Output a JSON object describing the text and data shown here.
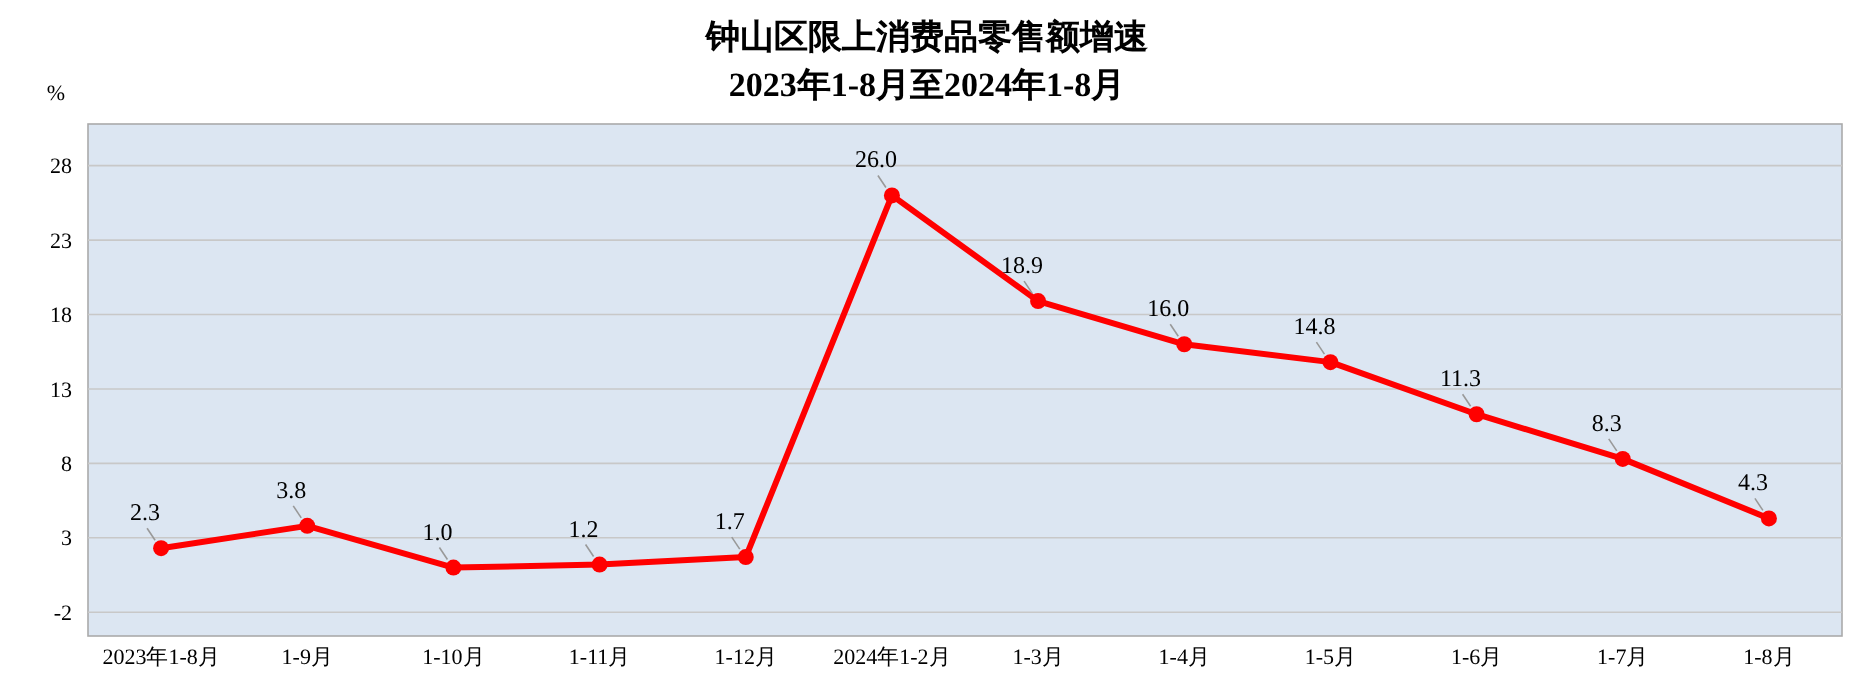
{
  "chart_data": {
    "type": "line",
    "title": "钟山区限上消费品零售额增速",
    "subtitle": "2023年1-8月至2024年1-8月",
    "ylabel": "%",
    "categories": [
      "2023年1-8月",
      "1-9月",
      "1-10月",
      "1-11月",
      "1-12月",
      "2024年1-2月",
      "1-3月",
      "1-4月",
      "1-5月",
      "1-6月",
      "1-7月",
      "1-8月"
    ],
    "series": [
      {
        "color": "#ff0000",
        "values": [
          2.3,
          3.8,
          1.0,
          1.2,
          1.7,
          26.0,
          18.9,
          16.0,
          14.8,
          11.3,
          8.3,
          4.3
        ],
        "value_labels": [
          "2.3",
          "3.8",
          "1.0",
          "1.2",
          "1.7",
          "26.0",
          "18.9",
          "16.0",
          "14.8",
          "11.3",
          "8.3",
          "4.3"
        ]
      }
    ],
    "ylim": [
      -3.6,
      30.8
    ],
    "yticks": [
      -2,
      3,
      8,
      13,
      18,
      23,
      28
    ],
    "grid": "y",
    "marker": "circle",
    "line_style": "solid"
  }
}
